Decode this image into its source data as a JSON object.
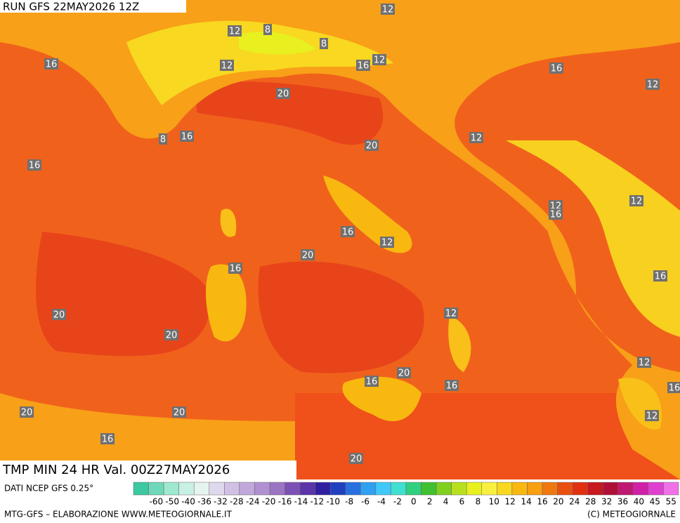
{
  "header": {
    "run": "RUN GFS 22MAY2026 12Z",
    "title": "TMP MIN 24 HR Val. 00Z27MAY2026"
  },
  "contour_labels": [
    "12",
    "12",
    "8",
    "8",
    "12",
    "16",
    "12",
    "16",
    "16",
    "12",
    "20",
    "8",
    "16",
    "12",
    "20",
    "16",
    "12",
    "16",
    "12",
    "16",
    "12",
    "20",
    "16",
    "16",
    "12",
    "20",
    "20",
    "12",
    "20",
    "16",
    "16",
    "16",
    "20",
    "20",
    "12",
    "16",
    "20"
  ],
  "colorbar": {
    "ticks": [
      "-60",
      "-50",
      "-40",
      "-36",
      "-32",
      "-28",
      "-24",
      "-20",
      "-16",
      "-14",
      "-12",
      "-10",
      "-8",
      "-6",
      "-4",
      "-2",
      "0",
      "2",
      "4",
      "6",
      "8",
      "10",
      "12",
      "14",
      "16",
      "20",
      "24",
      "28",
      "32",
      "36",
      "40",
      "45",
      "55"
    ],
    "colors": [
      "#3cc8a0",
      "#6ed8b8",
      "#9ee8d0",
      "#c8f0e4",
      "#e6f4ee",
      "#e0d8ec",
      "#d0c0e4",
      "#c0a8dc",
      "#b090d0",
      "#9c74c4",
      "#7c50b4",
      "#5a34a8",
      "#3020a0",
      "#2040c0",
      "#2870e0",
      "#30a0f0",
      "#40c8f8",
      "#40e0d0",
      "#30d080",
      "#40c030",
      "#80d020",
      "#b8e020",
      "#e8f020",
      "#f8f040",
      "#f8d820",
      "#f8b810",
      "#f8a010",
      "#f07810",
      "#e85010",
      "#e03010",
      "#c81820",
      "#b01038",
      "#c01870",
      "#d020a8",
      "#e040d0",
      "#f070e8"
    ]
  },
  "footer": {
    "source": "DATI NCEP GFS 0.25°",
    "credit": "MTG-GFS – ELABORAZIONE WWW.METEOGIORNALE.IT",
    "copyright": "(C) METEOGIORNALE"
  }
}
